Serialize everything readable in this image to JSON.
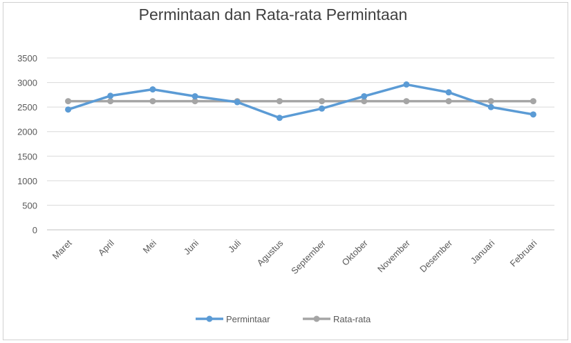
{
  "chart_data": {
    "type": "line",
    "title": "Permintaan dan Rata-rata Permintaan",
    "categories": [
      "Maret",
      "April",
      "Mei",
      "Juni",
      "Juli",
      "Agustus",
      "September",
      "Oktober",
      "November",
      "Desember",
      "Januari",
      "Februari"
    ],
    "series": [
      {
        "name": "Permintaar",
        "color": "#5b9bd5",
        "values": [
          2450,
          2730,
          2860,
          2720,
          2600,
          2280,
          2470,
          2720,
          2960,
          2800,
          2500,
          2350
        ]
      },
      {
        "name": "Rata-rata",
        "color": "#a5a5a5",
        "values": [
          2620,
          2620,
          2620,
          2620,
          2620,
          2620,
          2620,
          2620,
          2620,
          2620,
          2620,
          2620
        ]
      }
    ],
    "yticks": [
      0,
      500,
      1000,
      1500,
      2000,
      2500,
      3000,
      3500
    ],
    "ylim": [
      0,
      3500
    ],
    "grid": true,
    "legend": "bottom"
  }
}
